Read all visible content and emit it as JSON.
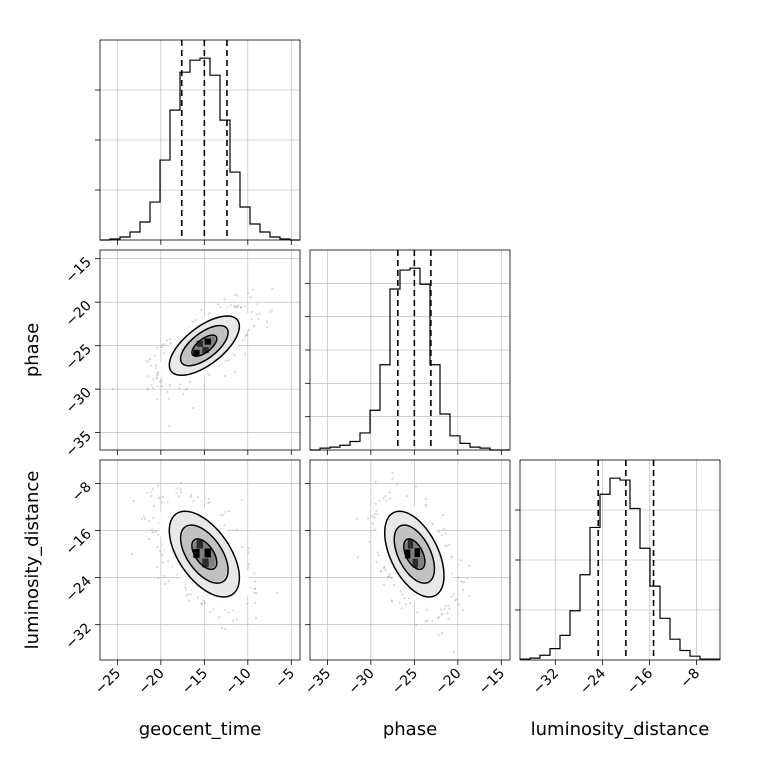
{
  "chart_data": {
    "type": "corner",
    "parameters": [
      "geocent_time",
      "phase",
      "luminosity_distance"
    ],
    "axes": {
      "geocent_time": {
        "range": [
          -27,
          -4
        ],
        "ticks": [
          -25,
          -20,
          -15,
          -10,
          -5
        ],
        "tick_labels": [
          "−25",
          "−20",
          "−15",
          "−10",
          "−5"
        ]
      },
      "phase": {
        "range": [
          -37,
          -14
        ],
        "ticks": [
          -35,
          -30,
          -25,
          -20,
          -15
        ],
        "tick_labels": [
          "−35",
          "−30",
          "−25",
          "−20",
          "−15"
        ]
      },
      "luminosity_distance": {
        "range": [
          -38,
          -4
        ],
        "ticks": [
          -32,
          -24,
          -16,
          -8
        ],
        "tick_labels": [
          "−32",
          "−24",
          "−16",
          "−8"
        ]
      }
    },
    "quantiles": {
      "geocent_time": [
        -17.6,
        -15.0,
        -12.4
      ],
      "phase": [
        -26.9,
        -25.0,
        -23.1
      ],
      "luminosity_distance": [
        -24.7,
        -20.0,
        -15.3
      ]
    },
    "histograms": [
      {
        "parameter": "geocent_time",
        "bin_edges": [
          -27,
          -25.85,
          -24.7,
          -23.55,
          -22.4,
          -21.25,
          -20.1,
          -18.95,
          -17.8,
          -16.65,
          -15.5,
          -14.35,
          -13.2,
          -12.05,
          -10.9,
          -9.75,
          -8.6,
          -7.45,
          -6.3,
          -5.15,
          -4
        ],
        "counts": [
          0,
          1,
          3,
          8,
          18,
          38,
          80,
          130,
          168,
          180,
          182,
          165,
          120,
          68,
          33,
          16,
          8,
          3,
          1,
          0
        ],
        "grid": [
          1,
          2,
          3
        ]
      },
      {
        "parameter": "phase",
        "bin_edges": [
          -37,
          -35.85,
          -34.7,
          -33.55,
          -32.4,
          -31.25,
          -30.1,
          -28.95,
          -27.8,
          -26.65,
          -25.5,
          -24.35,
          -23.2,
          -22.05,
          -20.9,
          -19.75,
          -18.6,
          -17.45,
          -16.3,
          -15.15,
          -14
        ],
        "counts": [
          0,
          2,
          3,
          5,
          9,
          18,
          42,
          90,
          170,
          190,
          192,
          175,
          90,
          38,
          15,
          7,
          3,
          2,
          0,
          0
        ],
        "grid": [
          1,
          2,
          3,
          4,
          5
        ]
      },
      {
        "parameter": "luminosity_distance",
        "bin_edges": [
          -38,
          -36.3,
          -34.6,
          -32.9,
          -31.2,
          -29.5,
          -27.8,
          -26.1,
          -24.4,
          -22.7,
          -21,
          -19.3,
          -17.6,
          -15.9,
          -14.2,
          -12.5,
          -10.8,
          -9.1,
          -7.4,
          -5.7,
          -4
        ],
        "counts": [
          1,
          2,
          5,
          12,
          26,
          52,
          90,
          140,
          175,
          192,
          190,
          160,
          118,
          78,
          44,
          22,
          10,
          4,
          1,
          1
        ],
        "grid": [
          1,
          2,
          3
        ]
      }
    ],
    "contour_panels": [
      {
        "x": "geocent_time",
        "y": "phase",
        "mean": [
          -15.0,
          -25.0
        ],
        "std": [
          2.6,
          2.2
        ],
        "corr": 0.65,
        "levels": [
          0.5,
          1.0,
          1.5,
          2.0
        ]
      },
      {
        "x": "geocent_time",
        "y": "luminosity_distance",
        "mean": [
          -15.0,
          -20.0
        ],
        "std": [
          2.6,
          4.7
        ],
        "corr": -0.55,
        "levels": [
          0.5,
          1.0,
          1.5,
          2.0
        ]
      },
      {
        "x": "phase",
        "y": "luminosity_distance",
        "mean": [
          -25.0,
          -20.0
        ],
        "std": [
          2.2,
          4.7
        ],
        "corr": -0.5,
        "levels": [
          0.5,
          1.0,
          1.5,
          2.0
        ]
      }
    ],
    "grid": true
  }
}
